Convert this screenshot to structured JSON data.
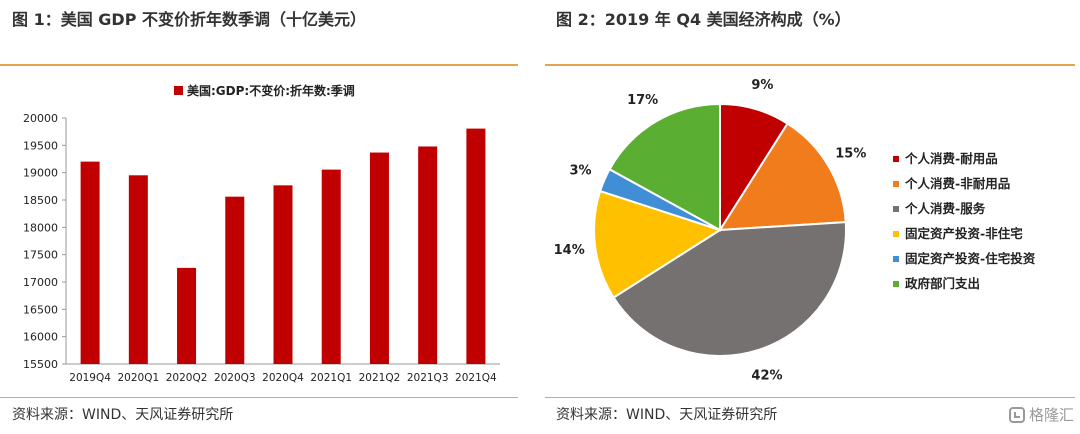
{
  "left_panel": {
    "title": "图 1：美国 GDP 不变价折年数季调（十亿美元）",
    "source": "资料来源：WIND、天风证券研究所"
  },
  "right_panel": {
    "title": "图 2：2019 年 Q4 美国经济构成（%）",
    "source": "资料来源：WIND、天风证券研究所"
  },
  "watermark": {
    "text": "格隆汇",
    "icon": "gelonghui-logo-icon"
  },
  "colors": {
    "bar": "#c00000",
    "rule": "#e0a64b"
  },
  "chart_data": [
    {
      "type": "bar",
      "legend": "美国:GDP:不变价:折年数:季调",
      "legend_position": "top",
      "categories": [
        "2019Q4",
        "2020Q1",
        "2020Q2",
        "2020Q3",
        "2020Q4",
        "2021Q1",
        "2021Q2",
        "2021Q3",
        "2021Q4"
      ],
      "values": [
        19202,
        18952,
        17258,
        18561,
        18768,
        19056,
        19368,
        19479,
        19806
      ],
      "ylim": [
        15500,
        20000
      ],
      "yticks": [
        15500,
        16000,
        16500,
        17000,
        17500,
        18000,
        18500,
        19000,
        19500,
        20000
      ],
      "grid": false,
      "color": "#c00000"
    },
    {
      "type": "pie",
      "legend_position": "right",
      "slices": [
        {
          "label": "个人消费-耐用品",
          "value": 9,
          "display": "9%",
          "color": "#c00000"
        },
        {
          "label": "个人消费-非耐用品",
          "value": 15,
          "display": "15%",
          "color": "#f07c1c"
        },
        {
          "label": "个人消费-服务",
          "value": 42,
          "display": "42%",
          "color": "#767171"
        },
        {
          "label": "固定资产投资-非住宅",
          "value": 14,
          "display": "14%",
          "color": "#ffc000"
        },
        {
          "label": "固定资产投资-住宅投资",
          "value": 3,
          "display": "3%",
          "color": "#3f8ed6"
        },
        {
          "label": "政府部门支出",
          "value": 17,
          "display": "17%",
          "color": "#5aaf33"
        }
      ]
    }
  ]
}
